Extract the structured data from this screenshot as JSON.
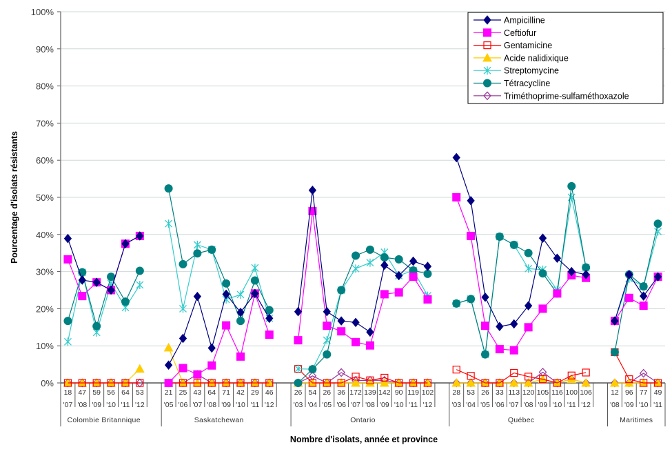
{
  "chart_data": {
    "type": "line",
    "title": "",
    "ylabel": "Pourcentage d'isolats résistants",
    "xlabel": "Nombre d'isolats, année et province",
    "ylim": [
      0,
      100
    ],
    "y_ticks": [
      "0%",
      "10%",
      "20%",
      "30%",
      "40%",
      "50%",
      "60%",
      "70%",
      "80%",
      "90%",
      "100%"
    ],
    "grid": true,
    "legend_position": "top-right",
    "groups": [
      {
        "name": "Colombie Britannique",
        "n": [
          "18",
          "47",
          "59",
          "56",
          "64",
          "53"
        ],
        "years": [
          "'07",
          "'08",
          "'09",
          "'10",
          "'11",
          "'12"
        ]
      },
      {
        "name": "Saskatchewan",
        "n": [
          "21",
          "25",
          "43",
          "64",
          "71",
          "42",
          "29",
          "46"
        ],
        "years": [
          "'05",
          "'06",
          "'07",
          "'08",
          "'09",
          "'10",
          "'11",
          "'12"
        ]
      },
      {
        "name": "Ontario",
        "n": [
          "26",
          "54",
          "26",
          "36",
          "172",
          "139",
          "142",
          "90",
          "119",
          "102"
        ],
        "years": [
          "'03",
          "'04",
          "'05",
          "'06",
          "'07",
          "'08",
          "'09",
          "'10",
          "'11",
          "'12"
        ]
      },
      {
        "name": "Québec",
        "n": [
          "28",
          "53",
          "26",
          "33",
          "113",
          "120",
          "105",
          "116",
          "100",
          "106"
        ],
        "years": [
          "'03",
          "'04",
          "'05",
          "'06",
          "'07",
          "'08",
          "'09",
          "'10",
          "'11",
          "'12"
        ]
      },
      {
        "name": "Maritimes",
        "n": [
          "12",
          "96",
          "77",
          "49"
        ],
        "years": [
          "'08",
          "'09",
          "'10",
          "'11"
        ]
      }
    ],
    "series": [
      {
        "name": "Ampicilline",
        "color": "#000080",
        "marker": "diamond",
        "values": [
          [
            38.9,
            27.7,
            27.1,
            25.0,
            37.5,
            39.6
          ],
          [
            4.8,
            12.0,
            23.3,
            9.4,
            23.9,
            19.0,
            24.1,
            17.4
          ],
          [
            19.2,
            51.9,
            19.2,
            16.7,
            16.3,
            13.7,
            31.7,
            28.9,
            32.8,
            31.4
          ],
          [
            60.7,
            49.1,
            23.1,
            15.2,
            15.9,
            20.8,
            39.0,
            33.6,
            30.0,
            29.2
          ],
          [
            16.7,
            29.2,
            23.4,
            28.6
          ]
        ]
      },
      {
        "name": "Ceftiofur",
        "color": "#FF00FF",
        "marker": "square",
        "values": [
          [
            33.3,
            23.4,
            27.1,
            25.0,
            37.5,
            39.6
          ],
          [
            0.0,
            4.0,
            2.3,
            4.7,
            15.5,
            7.1,
            24.1,
            13.0
          ],
          [
            11.5,
            46.3,
            15.4,
            13.9,
            11.0,
            10.1,
            23.9,
            24.4,
            28.6,
            22.5
          ],
          [
            50.0,
            39.6,
            15.4,
            9.1,
            8.8,
            15.0,
            20.0,
            24.1,
            29.0,
            28.3
          ],
          [
            16.7,
            22.9,
            20.8,
            28.6
          ]
        ]
      },
      {
        "name": "Gentamicine",
        "color": "#FF0000",
        "marker": "open-square",
        "values": [
          [
            0,
            0,
            0,
            0,
            0,
            0
          ],
          [
            0,
            0,
            0,
            0,
            0,
            0,
            0,
            0
          ],
          [
            3.8,
            0,
            0,
            0,
            1.7,
            0.7,
            1.4,
            0,
            0,
            0
          ],
          [
            3.6,
            1.9,
            0,
            0,
            2.7,
            1.7,
            1.0,
            0,
            2.0,
            2.8
          ],
          [
            8.3,
            1.0,
            0,
            0
          ]
        ]
      },
      {
        "name": "Acide nalidixique",
        "color": "#FFCC00",
        "marker": "triangle",
        "values": [
          [
            0,
            0,
            0,
            0,
            0,
            3.8
          ],
          [
            9.5,
            0,
            0,
            0,
            0,
            0,
            0,
            0
          ],
          [
            0,
            0,
            0,
            0,
            0,
            0,
            0,
            0,
            0,
            0
          ],
          [
            0,
            0,
            0,
            0,
            0,
            0,
            1.0,
            0,
            1.0,
            0
          ],
          [
            0,
            0,
            0,
            0
          ]
        ]
      },
      {
        "name": "Streptomycine",
        "color": "#33CCCC",
        "marker": "asterisk",
        "values": [
          [
            11.1,
            29.8,
            13.6,
            26.8,
            20.3,
            26.4
          ],
          [
            42.9,
            20.0,
            37.2,
            35.9,
            22.5,
            23.8,
            31.0,
            17.4
          ],
          [
            3.8,
            3.7,
            11.5,
            25.0,
            30.8,
            32.4,
            35.2,
            28.9,
            30.3,
            23.5
          ],
          [
            21.4,
            22.6,
            7.7,
            39.4,
            37.2,
            30.8,
            30.5,
            25.0,
            50.0,
            31.1
          ],
          [
            16.7,
            28.1,
            26.0,
            40.8
          ]
        ]
      },
      {
        "name": "Tétracycline",
        "color": "#008080",
        "marker": "circle",
        "values": [
          [
            16.7,
            29.8,
            15.3,
            28.6,
            21.9,
            30.2
          ],
          [
            52.4,
            32.0,
            34.9,
            35.9,
            26.8,
            16.7,
            27.6,
            19.6
          ],
          [
            0.0,
            3.7,
            7.7,
            25.0,
            34.3,
            35.9,
            33.8,
            33.3,
            30.3,
            29.4
          ],
          [
            21.4,
            22.6,
            7.7,
            39.4,
            37.2,
            35.0,
            29.5,
            24.1,
            53.0,
            31.1
          ],
          [
            8.3,
            29.2,
            26.0,
            42.9
          ]
        ]
      },
      {
        "name": "Triméthoprime-sulfaméthoxazole",
        "color": "#993399",
        "marker": "open-diamond",
        "values": [
          [
            0,
            0,
            0,
            0,
            0,
            0
          ],
          [
            0,
            0,
            2.3,
            0,
            0,
            0,
            0,
            0
          ],
          [
            0,
            1.9,
            0,
            2.8,
            0.6,
            0.7,
            0.7,
            0,
            0,
            0
          ],
          [
            0,
            0,
            0,
            0,
            0,
            0,
            2.9,
            0,
            1.0,
            0
          ],
          [
            0,
            0,
            2.6,
            0
          ]
        ]
      }
    ]
  }
}
